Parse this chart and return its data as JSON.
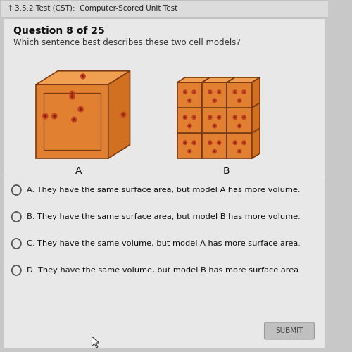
{
  "bg_color": "#c8c8c8",
  "header_bg": "#e8e8e8",
  "card_bg": "#e0e0e0",
  "header_text": "3.5.2 Test (CST):  Computer-Scored Unit Test",
  "question_label": "Question 8 of 25",
  "question_text": "Which sentence best describes these two cell models?",
  "label_A": "A",
  "label_B": "B",
  "options": [
    {
      "letter": "A",
      "text": " They have the same surface area, but model A has more volume."
    },
    {
      "letter": "B",
      "text": " They have the same surface area, but model B has more volume."
    },
    {
      "letter": "C",
      "text": " They have the same volume, but model A has more surface area."
    },
    {
      "letter": "D",
      "text": " They have the same volume, but model B has more surface area."
    }
  ],
  "submit_btn": "SUBMIT",
  "cube_front_color": "#e08030",
  "cube_right_color": "#d07020",
  "cube_top_color": "#f0a050",
  "cube_edge_color": "#7a3a10",
  "dot_outer_color": "#c04020",
  "dot_inner_color": "#802010"
}
